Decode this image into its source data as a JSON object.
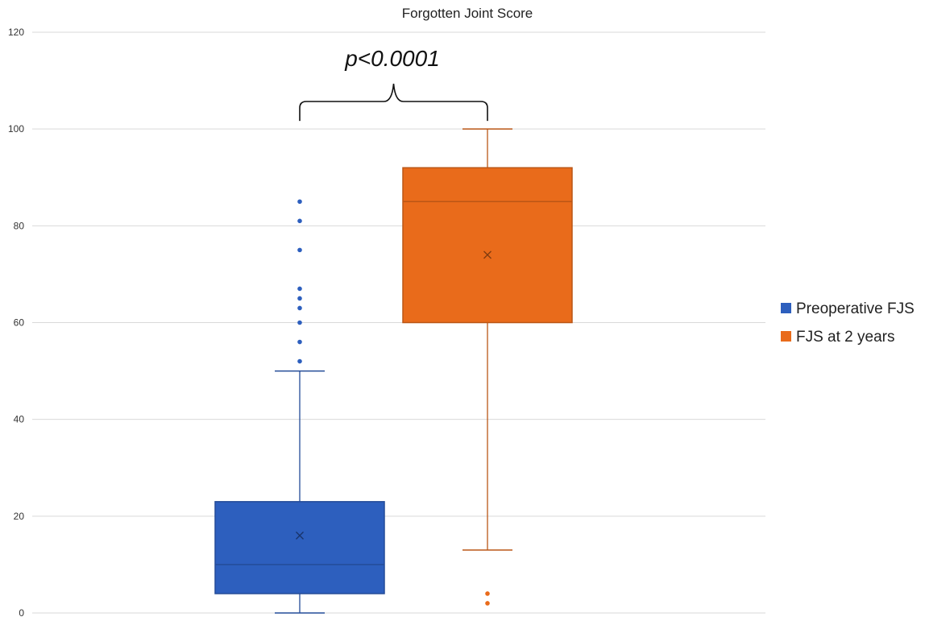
{
  "chart_data": {
    "type": "box",
    "title": "Forgotten Joint Score",
    "ylim": [
      0,
      120
    ],
    "yticks": [
      0,
      20,
      40,
      60,
      80,
      100,
      120
    ],
    "grid": true,
    "legend_position": "right",
    "annotation": "p<0.0001",
    "series": [
      {
        "name": "Preoperative FJS",
        "color": "#2D5FBE",
        "min": 0,
        "q1": 4,
        "median": 10,
        "q3": 23,
        "max": 50,
        "mean": 16,
        "outliers": [
          52,
          56,
          60,
          63,
          65,
          67,
          75,
          81,
          85
        ]
      },
      {
        "name": "FJS at 2 years",
        "color": "#E96B1B",
        "min": 13,
        "q1": 60,
        "median": 85,
        "q3": 92,
        "max": 100,
        "mean": 74,
        "outliers": [
          2,
          4
        ]
      }
    ]
  }
}
